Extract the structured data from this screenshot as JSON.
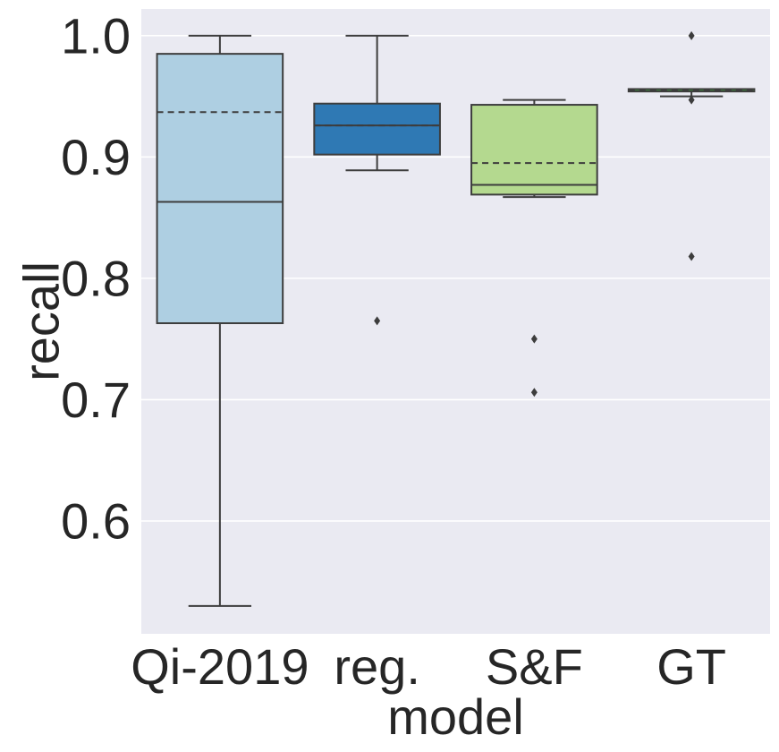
{
  "chart_data": {
    "type": "box",
    "title": "",
    "xlabel": "model",
    "ylabel": "recall",
    "ylim": [
      0.507,
      1.022
    ],
    "yticks": [
      0.6,
      0.7,
      0.8,
      0.9,
      1.0
    ],
    "ytick_labels": [
      "0.6",
      "0.7",
      "0.8",
      "0.9",
      "1.0"
    ],
    "grid": true,
    "background": "#eaeaf2",
    "line_color": "#3d3d3d",
    "categories": [
      "Qi-2019",
      "reg.",
      "S&F",
      "GT"
    ],
    "boxes": [
      {
        "name": "Qi-2019",
        "color": "#aecfe2",
        "whislo": 0.53,
        "q1": 0.763,
        "median": 0.863,
        "mean": 0.937,
        "q3": 0.985,
        "whishi": 1.0,
        "fliers": []
      },
      {
        "name": "reg.",
        "color": "#2f79b4",
        "whislo": 0.889,
        "q1": 0.902,
        "median": 0.926,
        "mean": 0.926,
        "q3": 0.944,
        "whishi": 1.0,
        "fliers": [
          0.765
        ]
      },
      {
        "name": "S&F",
        "color": "#b4d98f",
        "whislo": 0.867,
        "q1": 0.869,
        "median": 0.877,
        "mean": 0.895,
        "q3": 0.943,
        "whishi": 0.947,
        "fliers": [
          0.75,
          0.706
        ]
      },
      {
        "name": "GT",
        "color": "#39a137",
        "whislo": 0.95,
        "q1": 0.954,
        "median": 0.956,
        "mean": 0.955,
        "q3": 0.956,
        "whishi": 0.956,
        "fliers": [
          1.0,
          0.947,
          0.818
        ]
      }
    ]
  }
}
